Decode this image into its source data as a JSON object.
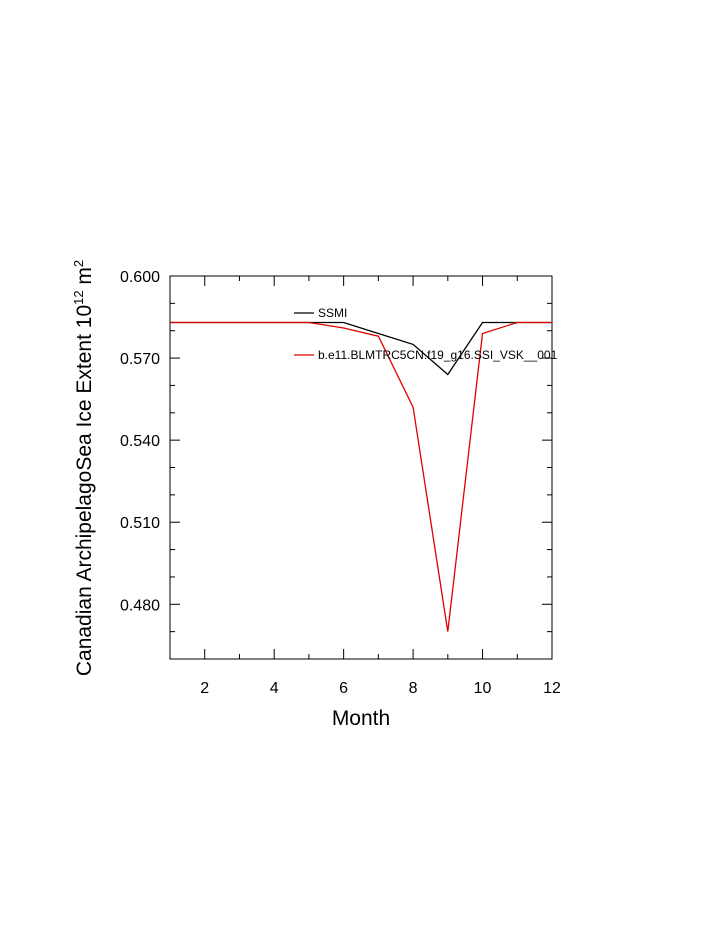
{
  "chart_data": {
    "type": "line",
    "title": "",
    "xlabel": "Month",
    "ylabel_main": "Canadian ArchipelagoSea Ice Extent 10",
    "ylabel_sup": "12",
    "ylabel_unit": " m",
    "ylabel_unit_sup": "2",
    "xlim": [
      1,
      12
    ],
    "ylim": [
      0.46,
      0.6
    ],
    "x_ticks": [
      2,
      4,
      6,
      8,
      10,
      12
    ],
    "x_tick_labels": [
      "2",
      "4",
      "6",
      "8",
      "10",
      "12"
    ],
    "y_ticks": [
      0.48,
      0.51,
      0.54,
      0.57,
      0.6
    ],
    "y_tick_labels": [
      "0.480",
      "0.510",
      "0.540",
      "0.570",
      "0.600"
    ],
    "legend_placement": "top-right",
    "grid": false,
    "x": [
      1,
      2,
      3,
      4,
      5,
      6,
      7,
      8,
      9,
      10,
      11,
      12
    ],
    "series": [
      {
        "name": "SSMI",
        "color": "#000000",
        "values": [
          0.583,
          0.583,
          0.583,
          0.583,
          0.583,
          0.583,
          0.579,
          0.575,
          0.564,
          0.583,
          0.583,
          0.583
        ]
      },
      {
        "name": "b.e11.BLMTRC5CN.f19_g16.SSI_VSK__001",
        "color": "#e00000",
        "values": [
          0.583,
          0.583,
          0.583,
          0.583,
          0.583,
          0.581,
          0.578,
          0.552,
          0.47,
          0.579,
          0.583,
          0.583
        ]
      }
    ]
  }
}
